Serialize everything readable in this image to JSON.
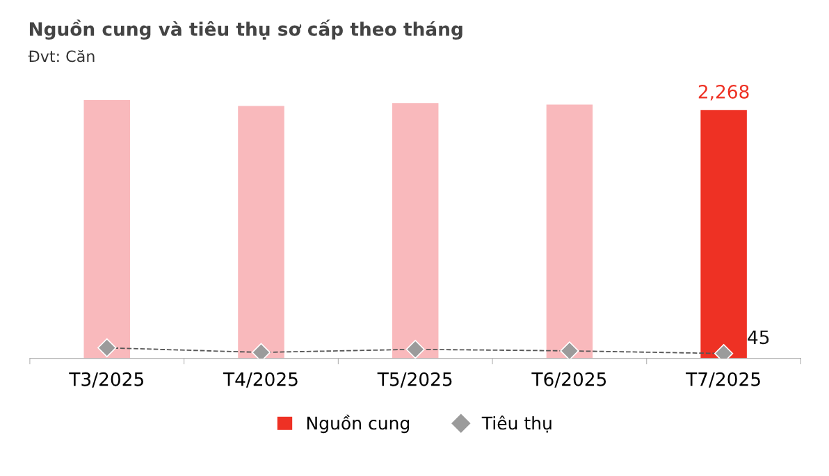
{
  "chart_data": {
    "type": "bar",
    "title": "Nguồn cung và tiêu thụ sơ cấp theo tháng",
    "subtitle": "Đvt: Căn",
    "categories": [
      "T3/2025",
      "T4/2025",
      "T5/2025",
      "T6/2025",
      "T7/2025"
    ],
    "series": [
      {
        "name": "Nguồn cung",
        "color": "#ee3124",
        "colors": [
          "#f9b9bc",
          "#f9b9bc",
          "#f9b9bc",
          "#f9b9bc",
          "#ee3124"
        ],
        "values": [
          2358,
          2303,
          2331,
          2317,
          2268
        ],
        "value_labels": [
          null,
          null,
          null,
          null,
          "2,268"
        ]
      },
      {
        "name": "Tiêu thụ",
        "type": "line",
        "color": "#9b9b9b",
        "values": [
          97,
          55,
          83,
          69,
          45
        ],
        "value_labels": [
          null,
          null,
          null,
          null,
          "45"
        ],
        "marker": "diamond",
        "line_style": "dashed"
      }
    ],
    "legend": "bottom",
    "grid": false
  }
}
